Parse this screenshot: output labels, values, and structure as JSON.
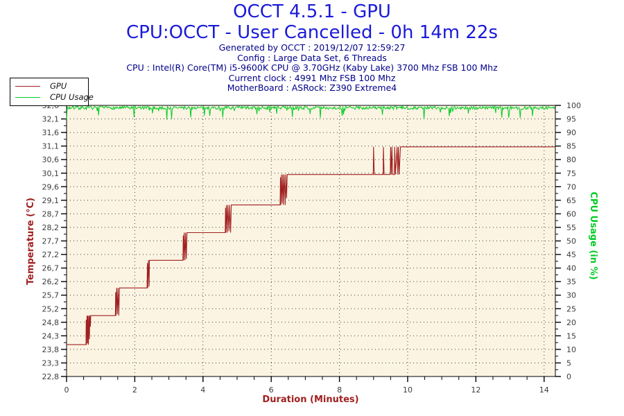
{
  "title": {
    "line1": "OCCT 4.5.1 - GPU",
    "line2": "CPU:OCCT - User Cancelled - 0h 14m 22s",
    "title_color": "#1a1ad8",
    "info_color": "#00008b",
    "info": [
      "Generated by OCCT : 2019/12/07 12:59:27",
      "Config : Large Data Set, 6 Threads",
      "CPU : Intel(R) Core(TM) i5-9600K CPU @ 3.70GHz (Kaby Lake) 3700 Mhz FSB 100 Mhz",
      "Current clock : 4991 Mhz FSB 100 Mhz",
      "MotherBoard : ASRock: Z390 Extreme4"
    ]
  },
  "legend": {
    "items": [
      {
        "label": "GPU",
        "color": "#a02020"
      },
      {
        "label": "CPU Usage",
        "color": "#00cc22"
      }
    ]
  },
  "chart_data": {
    "type": "line",
    "plot_bg": "#fcf4e3",
    "grid_color": "#3a3a3a",
    "axis_color": "#000000",
    "xlabel": "Duration (Minutes)",
    "x_range": [
      0,
      14.33
    ],
    "x_major_tick_values": [
      0,
      2,
      4,
      6,
      8,
      10,
      12,
      14
    ],
    "x_major_tick_labels": [
      "0",
      "2",
      "4",
      "6",
      "8",
      "10",
      "12",
      "14"
    ],
    "x_minor_step": 0.5,
    "y_left": {
      "label": "Temperature (°C)",
      "color": "#a02020",
      "range_bottom": 22.8,
      "range_top": 32.6,
      "tick_labels_top_to_bottom": [
        "32,6",
        "32,1",
        "31,6",
        "31,1",
        "30,6",
        "30,1",
        "29,6",
        "29,1",
        "28,7",
        "28,2",
        "27,7",
        "27,2",
        "26,7",
        "26,2",
        "25,7",
        "25,2",
        "24,8",
        "24,3",
        "23,8",
        "23,3",
        "22,8"
      ]
    },
    "y_right": {
      "label": "CPU Usage (in %)",
      "color": "#00cc22",
      "range_bottom": 0,
      "range_top": 100,
      "tick_labels_top_to_bottom": [
        "100",
        "95",
        "90",
        "85",
        "80",
        "75",
        "70",
        "65",
        "60",
        "55",
        "50",
        "45",
        "40",
        "35",
        "30",
        "25",
        "20",
        "15",
        "10",
        "5",
        "0"
      ]
    },
    "series": [
      {
        "name": "GPU",
        "axis": "left",
        "color": "#a02020",
        "points": [
          [
            0,
            23.95
          ],
          [
            0.57,
            23.95
          ],
          [
            0.575,
            24.85
          ],
          [
            0.585,
            23.95
          ],
          [
            0.6,
            25.0
          ],
          [
            0.615,
            24.0
          ],
          [
            0.625,
            25.0
          ],
          [
            0.64,
            23.95
          ],
          [
            0.655,
            25.0
          ],
          [
            0.67,
            24.15
          ],
          [
            0.68,
            25.0
          ],
          [
            0.7,
            24.6
          ],
          [
            0.71,
            25.0
          ],
          [
            1.43,
            25.0
          ],
          [
            1.44,
            25.85
          ],
          [
            1.45,
            25.0
          ],
          [
            1.47,
            26.0
          ],
          [
            1.49,
            25.05
          ],
          [
            1.51,
            26.0
          ],
          [
            1.53,
            25.0
          ],
          [
            1.55,
            26.0
          ],
          [
            2.36,
            26.0
          ],
          [
            2.37,
            26.9
          ],
          [
            2.38,
            26.0
          ],
          [
            2.4,
            27.0
          ],
          [
            2.42,
            26.05
          ],
          [
            2.43,
            27.0
          ],
          [
            3.41,
            27.0
          ],
          [
            3.42,
            27.9
          ],
          [
            3.43,
            27.0
          ],
          [
            3.45,
            28.0
          ],
          [
            3.47,
            27.0
          ],
          [
            3.49,
            28.0
          ],
          [
            3.51,
            27.05
          ],
          [
            3.53,
            28.0
          ],
          [
            4.65,
            28.0
          ],
          [
            4.66,
            28.9
          ],
          [
            4.67,
            28.0
          ],
          [
            4.69,
            29.0
          ],
          [
            4.71,
            28.0
          ],
          [
            4.73,
            29.0
          ],
          [
            4.76,
            28.05
          ],
          [
            4.78,
            29.0
          ],
          [
            4.81,
            28.0
          ],
          [
            4.83,
            29.0
          ],
          [
            6.26,
            29.0
          ],
          [
            6.27,
            30.0
          ],
          [
            6.28,
            29.0
          ],
          [
            6.3,
            30.1
          ],
          [
            6.32,
            29.05
          ],
          [
            6.34,
            30.1
          ],
          [
            6.36,
            29.0
          ],
          [
            6.38,
            30.1
          ],
          [
            6.41,
            29.0
          ],
          [
            6.43,
            30.1
          ],
          [
            6.45,
            29.25
          ],
          [
            6.47,
            30.1
          ],
          [
            8.99,
            30.1
          ],
          [
            9.0,
            31.1
          ],
          [
            9.02,
            30.1
          ],
          [
            9.28,
            30.1
          ],
          [
            9.29,
            31.1
          ],
          [
            9.31,
            30.1
          ],
          [
            9.49,
            30.1
          ],
          [
            9.5,
            31.1
          ],
          [
            9.52,
            30.1
          ],
          [
            9.54,
            31.1
          ],
          [
            9.56,
            30.1
          ],
          [
            9.61,
            30.1
          ],
          [
            9.62,
            31.1
          ],
          [
            9.64,
            30.1
          ],
          [
            9.69,
            31.1
          ],
          [
            9.71,
            30.1
          ],
          [
            9.73,
            31.1
          ],
          [
            9.75,
            30.1
          ],
          [
            9.79,
            31.1
          ],
          [
            14.33,
            31.1
          ]
        ]
      },
      {
        "name": "CPU Usage",
        "axis": "right",
        "color": "#00cc22",
        "style": "noisy",
        "base": 99.1,
        "jitter": 1.2,
        "dip_chance": 0.07,
        "dip_depth_max": 3.4,
        "min": 94.8,
        "max": 100,
        "seed": 7,
        "step": 0.02,
        "summary": "CPU usage holds ~99% for the entire 14.3 minute run with frequent brief dips to 95-97%"
      }
    ]
  }
}
